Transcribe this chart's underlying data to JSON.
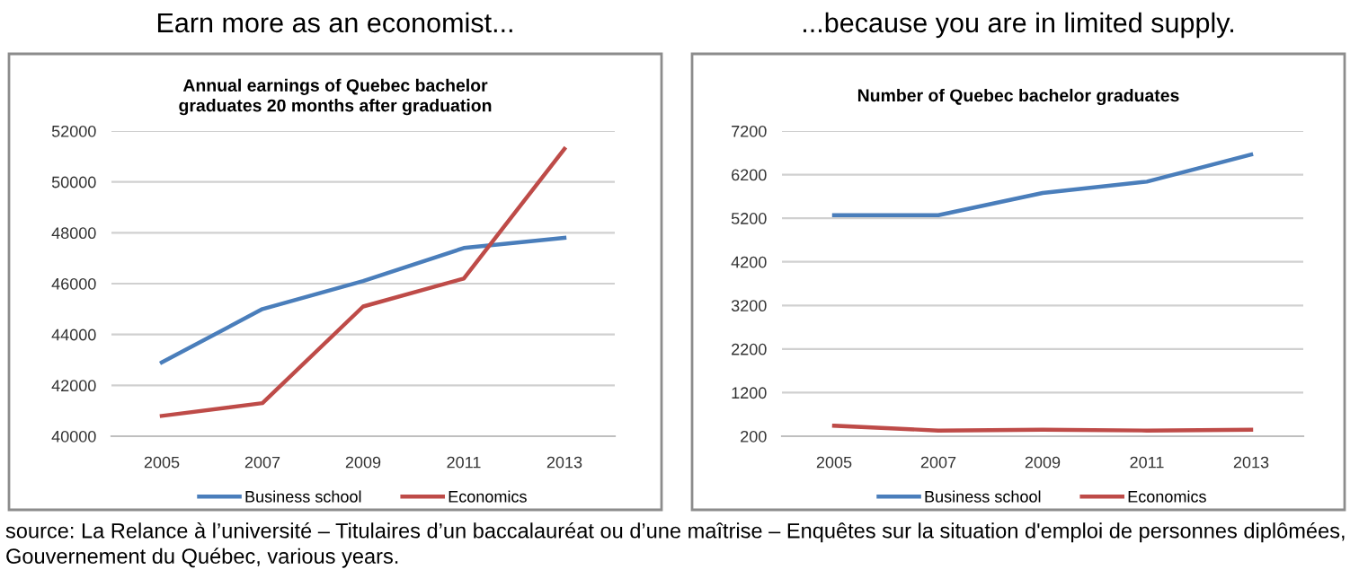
{
  "chart_data": [
    {
      "type": "line",
      "subtitle": "Earn more as an economist...",
      "title": "Annual earnings of Quebec bachelor\ngraduates 20 months after graduation",
      "categories": [
        "2005",
        "2007",
        "2009",
        "2011",
        "2013"
      ],
      "series": [
        {
          "name": "Business school",
          "color": "#4a7ebb",
          "values": [
            42900,
            45000,
            46100,
            47400,
            47800
          ]
        },
        {
          "name": "Economics",
          "color": "#be4b48",
          "values": [
            40800,
            41300,
            45100,
            46200,
            51300
          ]
        }
      ],
      "ylim": [
        40000,
        52000
      ],
      "yticks": [
        40000,
        42000,
        44000,
        46000,
        48000,
        50000,
        52000
      ],
      "grid": "y",
      "legend": "bottom"
    },
    {
      "type": "line",
      "subtitle": "...because you are in limited supply.",
      "title": "Number of Quebec bachelor graduates",
      "categories": [
        "2005",
        "2007",
        "2009",
        "2011",
        "2013"
      ],
      "series": [
        {
          "name": "Business school",
          "color": "#4a7ebb",
          "values": [
            5270,
            5270,
            5780,
            6040,
            6660
          ]
        },
        {
          "name": "Economics",
          "color": "#be4b48",
          "values": [
            440,
            330,
            350,
            330,
            350
          ]
        }
      ],
      "ylim": [
        200,
        7200
      ],
      "yticks": [
        200,
        1200,
        2200,
        3200,
        4200,
        5200,
        6200,
        7200
      ],
      "grid": "y",
      "legend": "bottom",
      "annotations": [
        "source: La Relance à l’université – Titulaires d’un baccalauréat ou d’une maîtrise – Enquêtes sur la situation d'emploi de personnes diplômées, Gouvernement du Québec, various years."
      ]
    }
  ]
}
